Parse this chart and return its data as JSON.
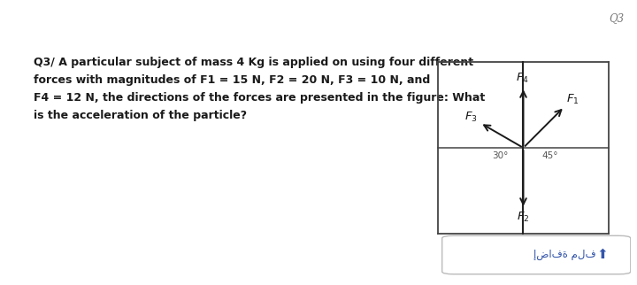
{
  "bg_color": "#ffffff",
  "box_bg": "#ffffff",
  "question_text_line1": "Q3/ A particular subject of mass 4 Kg is applied on using four different",
  "question_text_line2": "forces with magnitudes of F1 = 15 N, F2 = 20 N, F3 = 10 N, and",
  "question_text_line3": "F4 = 12 N, the directions of the forces are presented in the figure: What",
  "question_text_line4": "is the acceleration of the particle?",
  "q3_label": "Q3",
  "footer_text": "إضافة ملف",
  "angle_30_label": "30°",
  "angle_45_label": "45°",
  "arrow_color": "#1a1a1a",
  "text_color": "#1a1a1a",
  "box_border_color": "#555555",
  "line_color": "#333333",
  "footer_text_color": "#3355aa",
  "footer_border_color": "#aaaaaa"
}
